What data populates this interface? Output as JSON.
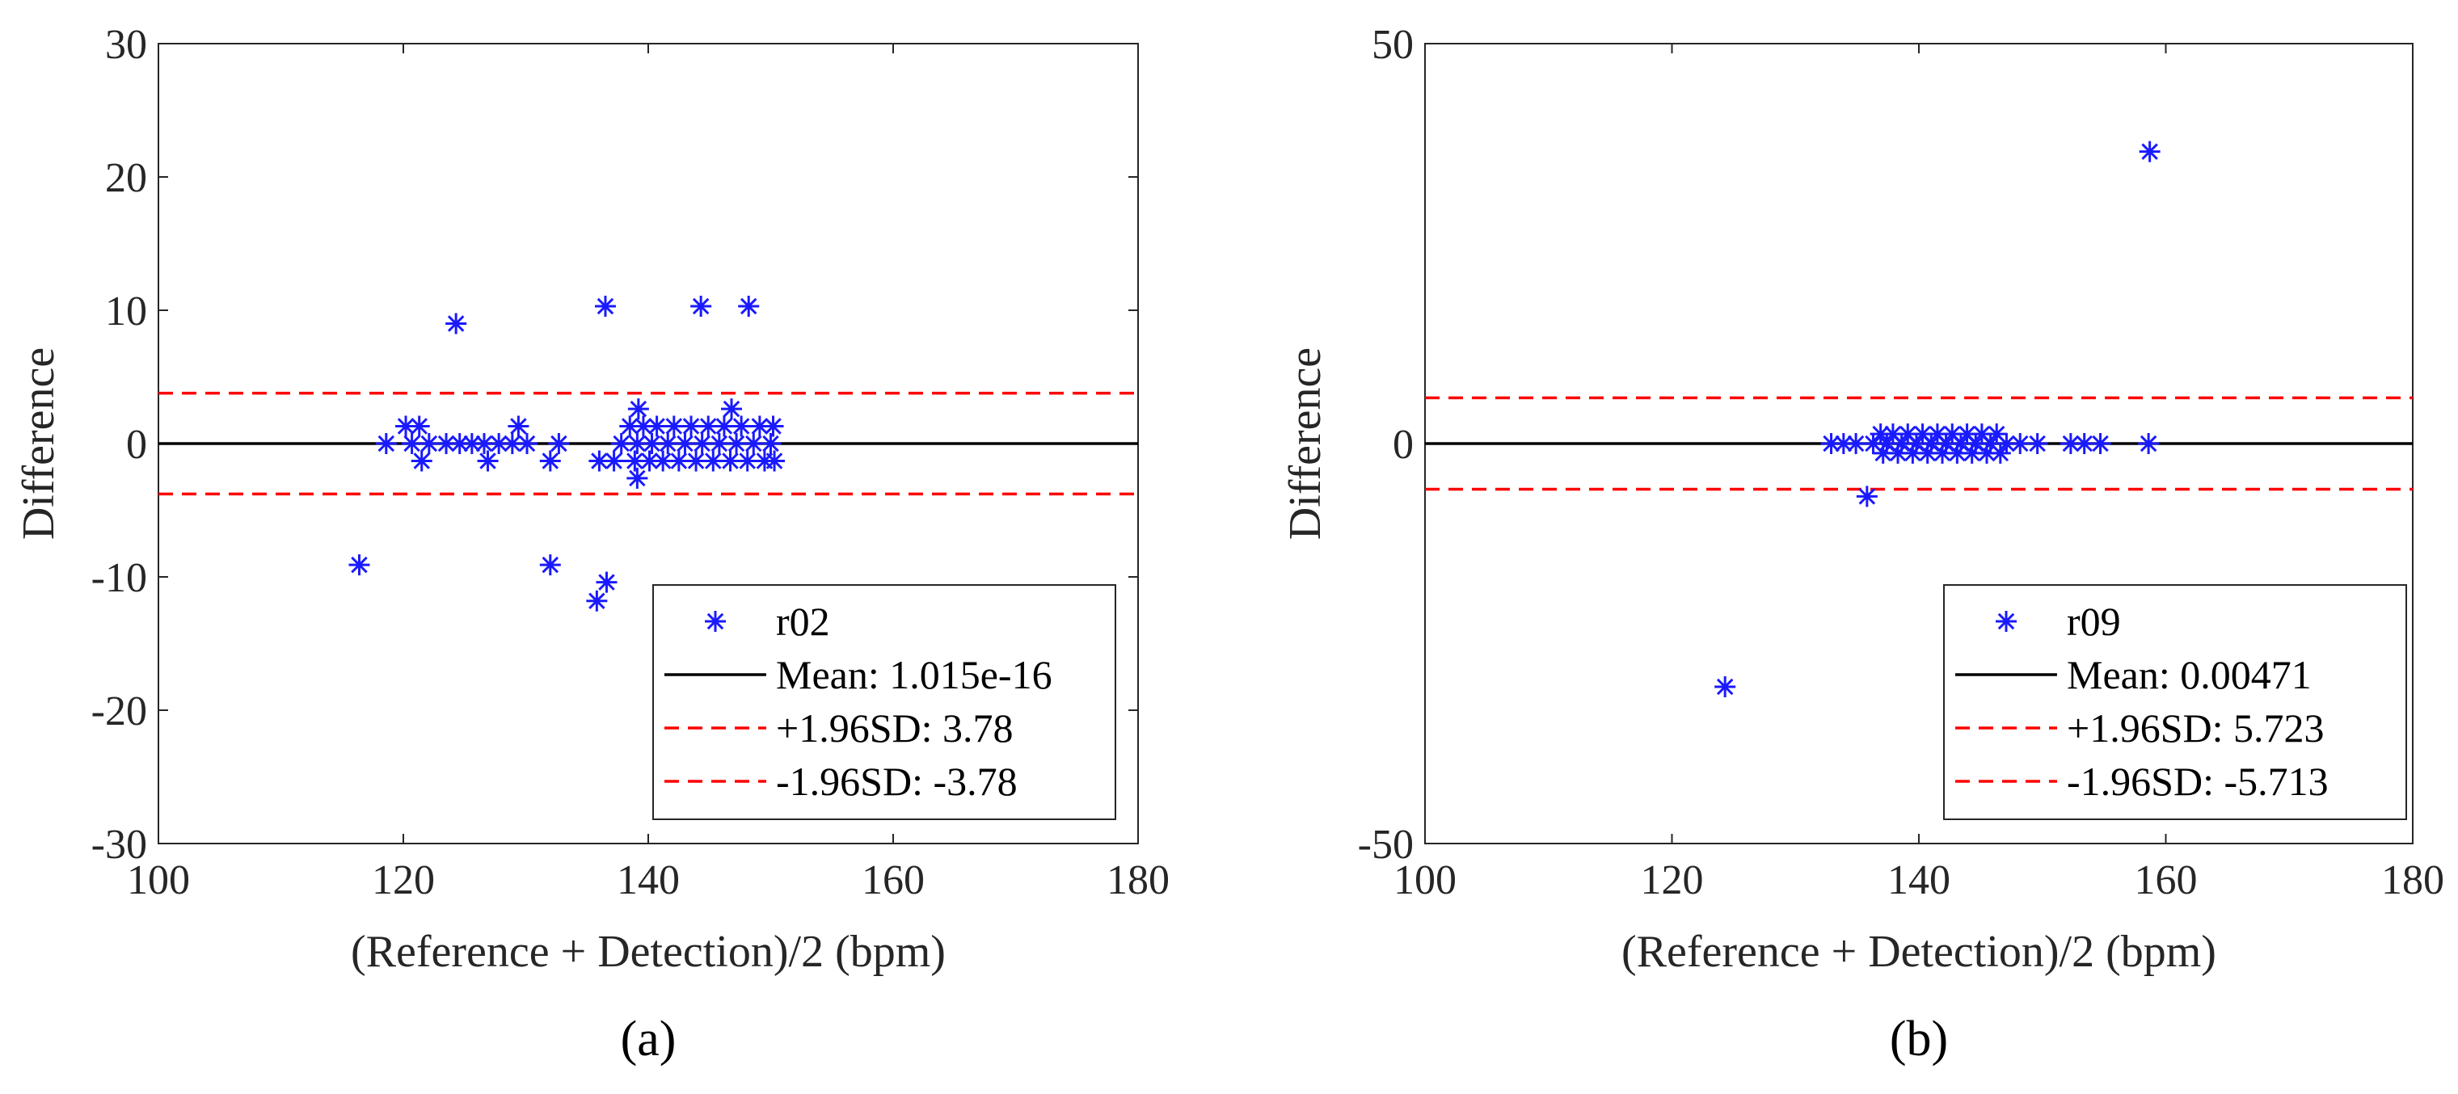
{
  "chart_data": [
    {
      "type": "scatter",
      "panel_label": "(a)",
      "title": "",
      "xlabel": "(Reference + Detection)/2 (bpm)",
      "ylabel": "Difference",
      "xlim": [
        100,
        180
      ],
      "ylim": [
        -30,
        30
      ],
      "xticks": [
        100,
        120,
        140,
        160,
        180
      ],
      "xtick_labels": [
        "100",
        "120",
        "140",
        "160",
        "180"
      ],
      "yticks": [
        -30,
        -20,
        -10,
        0,
        10,
        20,
        30
      ],
      "ytick_labels": [
        "-30",
        "-20",
        "-10",
        "0",
        "10",
        "20",
        "30"
      ],
      "grid": false,
      "legend_position": "bottom-right",
      "series": [
        {
          "name": "r02",
          "marker": "asterisk",
          "color": "#1a1aff",
          "points": [
            [
              116.4,
              -9.1
            ],
            [
              118.6,
              0
            ],
            [
              120.2,
              1.3
            ],
            [
              120.7,
              0
            ],
            [
              121.3,
              1.3
            ],
            [
              121.5,
              -1.3
            ],
            [
              122.1,
              0
            ],
            [
              123.5,
              0
            ],
            [
              124.3,
              9.0
            ],
            [
              124.6,
              0
            ],
            [
              125.6,
              0
            ],
            [
              126.6,
              0
            ],
            [
              126.9,
              -1.3
            ],
            [
              127.8,
              0
            ],
            [
              128.9,
              0
            ],
            [
              129.4,
              1.3
            ],
            [
              130.1,
              0
            ],
            [
              132.0,
              -1.3
            ],
            [
              132.0,
              -9.1
            ],
            [
              132.7,
              0
            ],
            [
              135.8,
              -11.8
            ],
            [
              136.0,
              -1.3
            ],
            [
              136.5,
              10.3
            ],
            [
              136.6,
              -10.4
            ],
            [
              137.2,
              -1.3
            ],
            [
              137.8,
              0
            ],
            [
              138.5,
              1.3
            ],
            [
              138.9,
              -1.3
            ],
            [
              139.1,
              0
            ],
            [
              139.1,
              -2.6
            ],
            [
              139.2,
              2.6
            ],
            [
              139.6,
              1.3
            ],
            [
              140.1,
              -1.3
            ],
            [
              140.3,
              0
            ],
            [
              140.7,
              1.3
            ],
            [
              141.2,
              -1.3
            ],
            [
              141.6,
              0
            ],
            [
              142.1,
              1.3
            ],
            [
              142.5,
              -1.3
            ],
            [
              143.0,
              0
            ],
            [
              143.5,
              1.3
            ],
            [
              143.9,
              -1.3
            ],
            [
              144.3,
              10.3
            ],
            [
              144.4,
              0
            ],
            [
              144.9,
              1.3
            ],
            [
              145.3,
              -1.3
            ],
            [
              145.8,
              0
            ],
            [
              146.2,
              1.3
            ],
            [
              146.7,
              -1.3
            ],
            [
              146.8,
              2.6
            ],
            [
              147.2,
              0
            ],
            [
              147.6,
              1.3
            ],
            [
              148.1,
              -1.3
            ],
            [
              148.2,
              10.3
            ],
            [
              148.6,
              0
            ],
            [
              149.1,
              1.3
            ],
            [
              149.5,
              -1.3
            ],
            [
              150.0,
              0
            ],
            [
              150.2,
              1.3
            ],
            [
              150.3,
              -1.3
            ]
          ]
        },
        {
          "name": "Mean: 1.015e-16",
          "kind": "hline",
          "y": 0,
          "color": "#000000",
          "style": "solid"
        },
        {
          "name": "+1.96SD: 3.78",
          "kind": "hline",
          "y": 3.78,
          "color": "#ff0000",
          "style": "dashed"
        },
        {
          "name": "-1.96SD: -3.78",
          "kind": "hline",
          "y": -3.78,
          "color": "#ff0000",
          "style": "dashed"
        }
      ]
    },
    {
      "type": "scatter",
      "panel_label": "(b)",
      "title": "",
      "xlabel": "(Reference + Detection)/2 (bpm)",
      "ylabel": "Difference",
      "xlim": [
        100,
        180
      ],
      "ylim": [
        -50,
        50
      ],
      "xticks": [
        100,
        120,
        140,
        160,
        180
      ],
      "xtick_labels": [
        "100",
        "120",
        "140",
        "160",
        "180"
      ],
      "yticks": [
        -50,
        0,
        50
      ],
      "ytick_labels": [
        "-50",
        "0",
        "50"
      ],
      "grid": false,
      "legend_position": "bottom-right",
      "series": [
        {
          "name": "r09",
          "marker": "asterisk",
          "color": "#1a1aff",
          "points": [
            [
              124.3,
              -30.4
            ],
            [
              132.9,
              0
            ],
            [
              133.9,
              0
            ],
            [
              134.9,
              0
            ],
            [
              135.8,
              -6.6
            ],
            [
              136.3,
              0
            ],
            [
              136.9,
              1.2
            ],
            [
              137.1,
              -1.2
            ],
            [
              137.4,
              0
            ],
            [
              137.9,
              1.2
            ],
            [
              138.3,
              -1.2
            ],
            [
              138.6,
              0
            ],
            [
              139.1,
              1.2
            ],
            [
              139.5,
              -1.2
            ],
            [
              139.8,
              0
            ],
            [
              140.3,
              1.2
            ],
            [
              140.7,
              -1.2
            ],
            [
              141.0,
              0
            ],
            [
              141.5,
              1.2
            ],
            [
              141.9,
              -1.2
            ],
            [
              142.2,
              0
            ],
            [
              142.7,
              1.2
            ],
            [
              143.1,
              -1.2
            ],
            [
              143.4,
              0
            ],
            [
              143.9,
              1.2
            ],
            [
              144.3,
              -1.2
            ],
            [
              144.6,
              0
            ],
            [
              145.1,
              1.2
            ],
            [
              145.5,
              -1.2
            ],
            [
              145.8,
              0
            ],
            [
              146.3,
              1.2
            ],
            [
              146.6,
              -1.2
            ],
            [
              147.1,
              0
            ],
            [
              148.2,
              0
            ],
            [
              149.6,
              0
            ],
            [
              152.3,
              0
            ],
            [
              153.4,
              0
            ],
            [
              154.7,
              0
            ],
            [
              158.6,
              0
            ],
            [
              158.7,
              36.5
            ]
          ]
        },
        {
          "name": "Mean: 0.00471",
          "kind": "hline",
          "y": 0.00471,
          "color": "#000000",
          "style": "solid"
        },
        {
          "name": "+1.96SD: 5.723",
          "kind": "hline",
          "y": 5.723,
          "color": "#ff0000",
          "style": "dashed"
        },
        {
          "name": "-1.96SD: -5.713",
          "kind": "hline",
          "y": -5.713,
          "color": "#ff0000",
          "style": "dashed"
        }
      ]
    }
  ]
}
